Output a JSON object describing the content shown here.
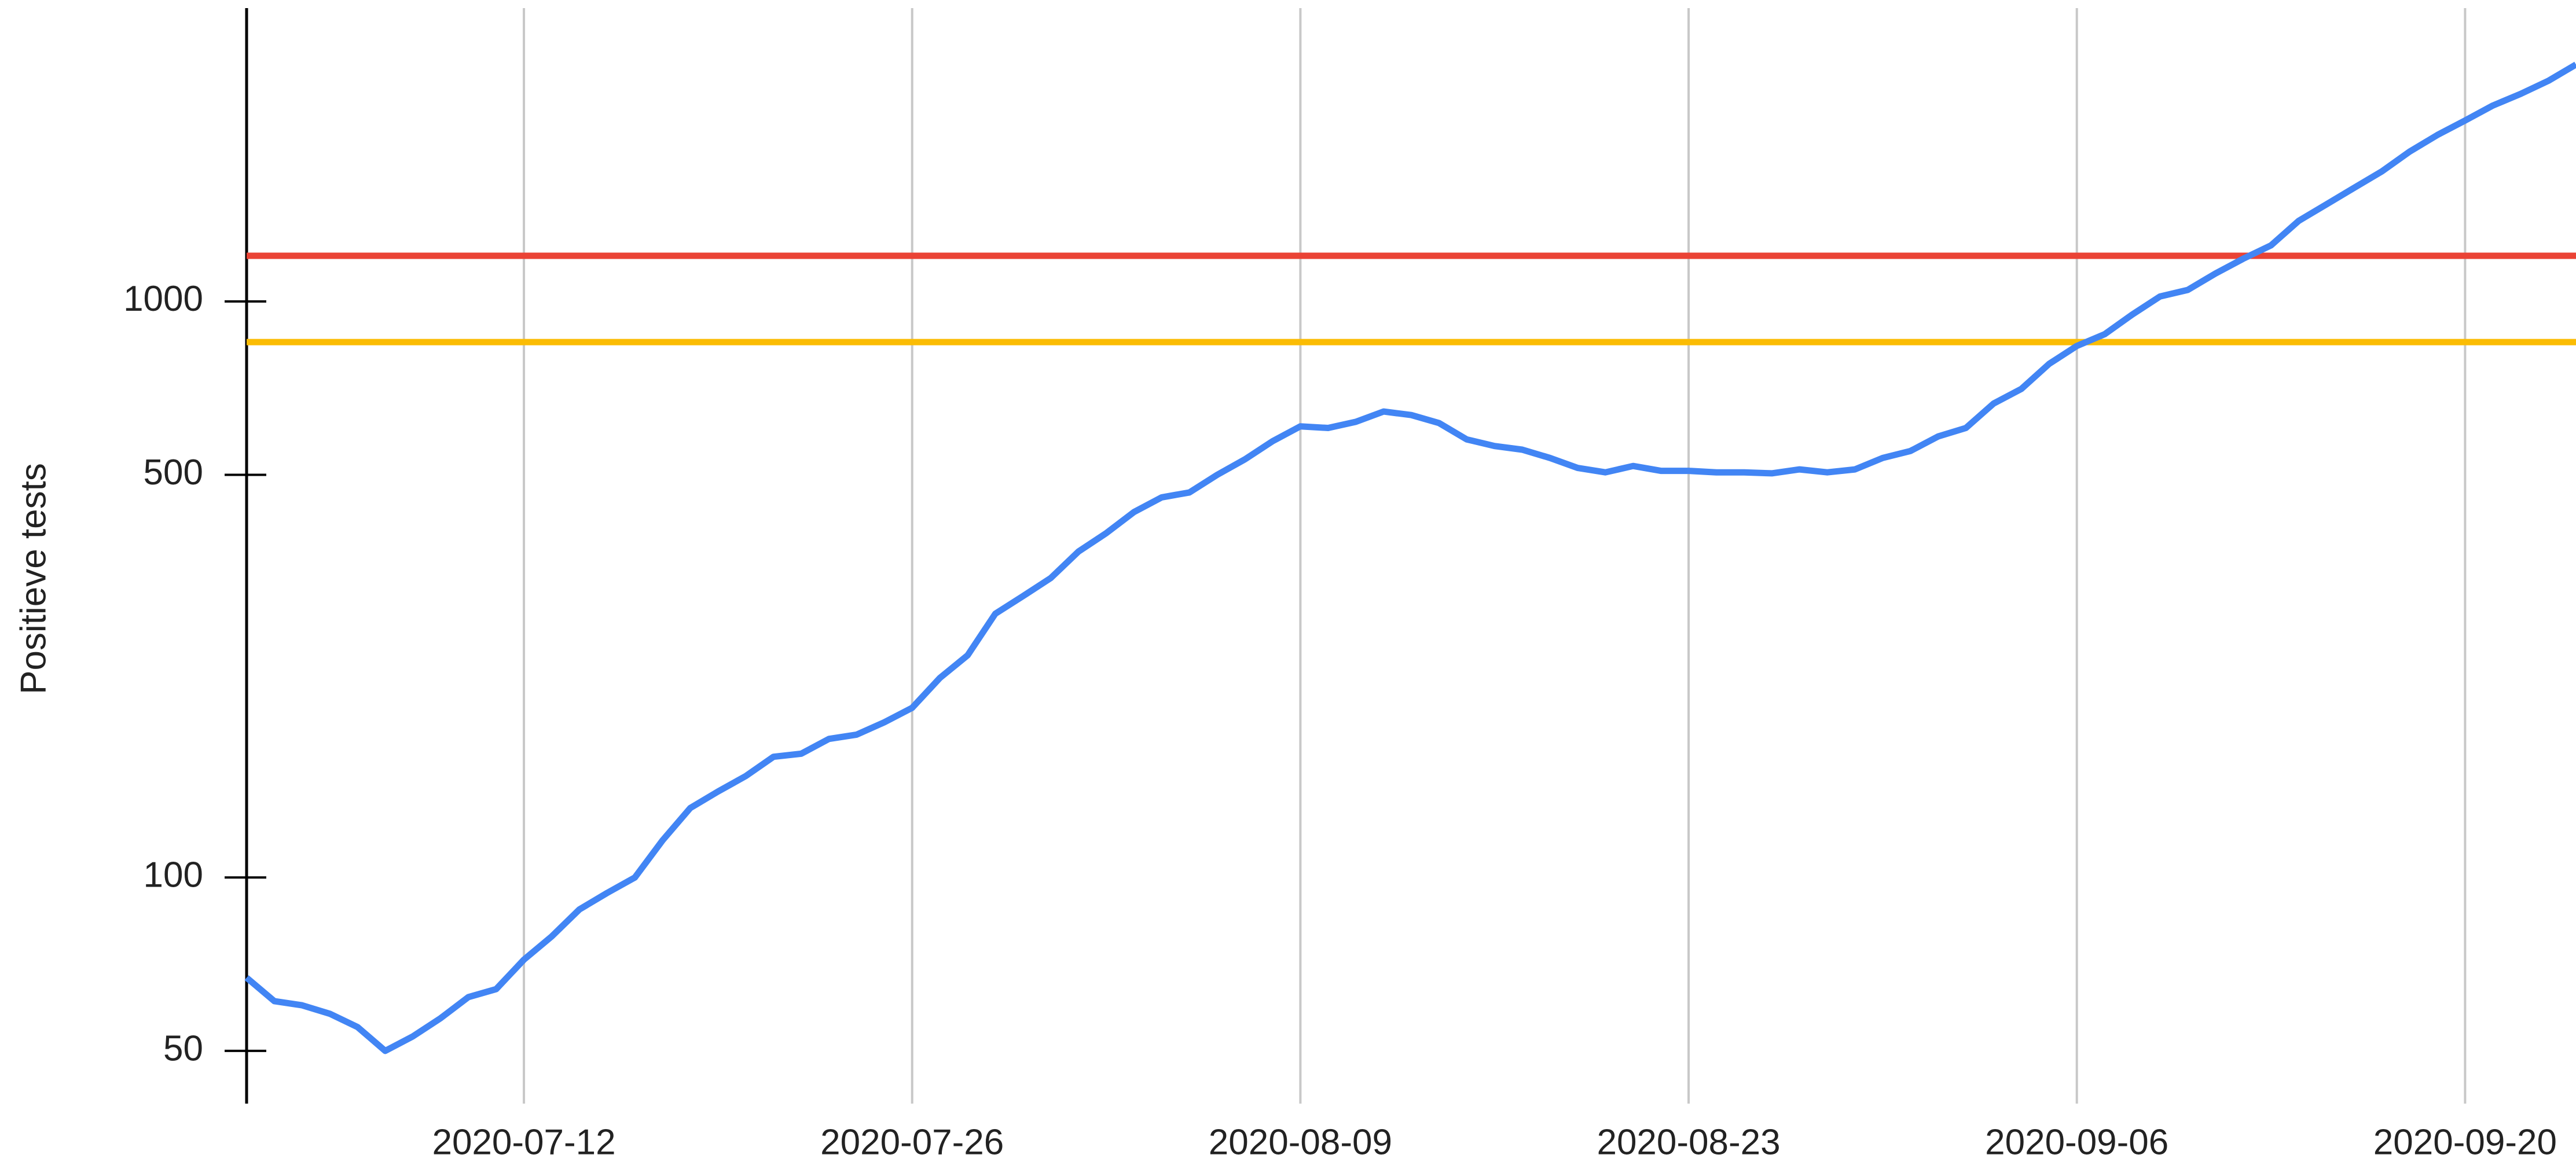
{
  "chart_data": {
    "type": "line",
    "y_label": "Positieve tests",
    "log_scale": true,
    "grid": "vertical",
    "x": [
      "2020-07-02",
      "2020-07-03",
      "2020-07-04",
      "2020-07-05",
      "2020-07-06",
      "2020-07-07",
      "2020-07-08",
      "2020-07-09",
      "2020-07-10",
      "2020-07-11",
      "2020-07-12",
      "2020-07-13",
      "2020-07-14",
      "2020-07-15",
      "2020-07-16",
      "2020-07-17",
      "2020-07-18",
      "2020-07-19",
      "2020-07-20",
      "2020-07-21",
      "2020-07-22",
      "2020-07-23",
      "2020-07-24",
      "2020-07-25",
      "2020-07-26",
      "2020-07-27",
      "2020-07-28",
      "2020-07-29",
      "2020-07-30",
      "2020-07-31",
      "2020-08-01",
      "2020-08-02",
      "2020-08-03",
      "2020-08-04",
      "2020-08-05",
      "2020-08-06",
      "2020-08-07",
      "2020-08-08",
      "2020-08-09",
      "2020-08-10",
      "2020-08-11",
      "2020-08-12",
      "2020-08-13",
      "2020-08-14",
      "2020-08-15",
      "2020-08-16",
      "2020-08-17",
      "2020-08-18",
      "2020-08-19",
      "2020-08-20",
      "2020-08-21",
      "2020-08-22",
      "2020-08-23",
      "2020-08-24",
      "2020-08-25",
      "2020-08-26",
      "2020-08-27",
      "2020-08-28",
      "2020-08-29",
      "2020-08-30",
      "2020-08-31",
      "2020-09-01",
      "2020-09-02",
      "2020-09-03",
      "2020-09-04",
      "2020-09-05",
      "2020-09-06",
      "2020-09-07",
      "2020-09-08",
      "2020-09-09",
      "2020-09-10",
      "2020-09-11",
      "2020-09-12",
      "2020-09-13",
      "2020-09-14",
      "2020-09-15",
      "2020-09-16",
      "2020-09-17",
      "2020-09-18",
      "2020-09-19",
      "2020-09-20",
      "2020-09-21",
      "2020-09-22",
      "2020-09-23",
      "2020-09-24"
    ],
    "series": [
      {
        "color": "#4285f4",
        "values": [
          67,
          61,
          60,
          58,
          55,
          50,
          53,
          57,
          62,
          64,
          72,
          79,
          88,
          94,
          100,
          116,
          132,
          141,
          150,
          162,
          164,
          174,
          177,
          186,
          197,
          222,
          243,
          287,
          308,
          331,
          368,
          396,
          431,
          457,
          466,
          500,
          532,
          572,
          607,
          603,
          618,
          644,
          635,
          615,
          576,
          561,
          553,
          535,
          514,
          505,
          518,
          508,
          508,
          505,
          505,
          503,
          511,
          505,
          511,
          535,
          550,
          583,
          603,
          665,
          705,
          779,
          837,
          877,
          949,
          1020,
          1047,
          1118,
          1186,
          1251,
          1380,
          1474,
          1575,
          1682,
          1820,
          1945,
          2061,
          2188,
          2292,
          2415,
          2578
        ]
      }
    ],
    "reference_lines": [
      {
        "value": 1200,
        "color": "#ea4335"
      },
      {
        "value": 850,
        "color": "#fbbc04"
      }
    ],
    "xlim": [
      "2020-07-02",
      "2020-09-24"
    ],
    "xticks": [
      "2020-07-12",
      "2020-07-26",
      "2020-08-09",
      "2020-08-23",
      "2020-09-06",
      "2020-09-20"
    ],
    "ylim": [
      40.5,
      3230
    ],
    "yticks": [
      50,
      100,
      500,
      1000
    ]
  }
}
